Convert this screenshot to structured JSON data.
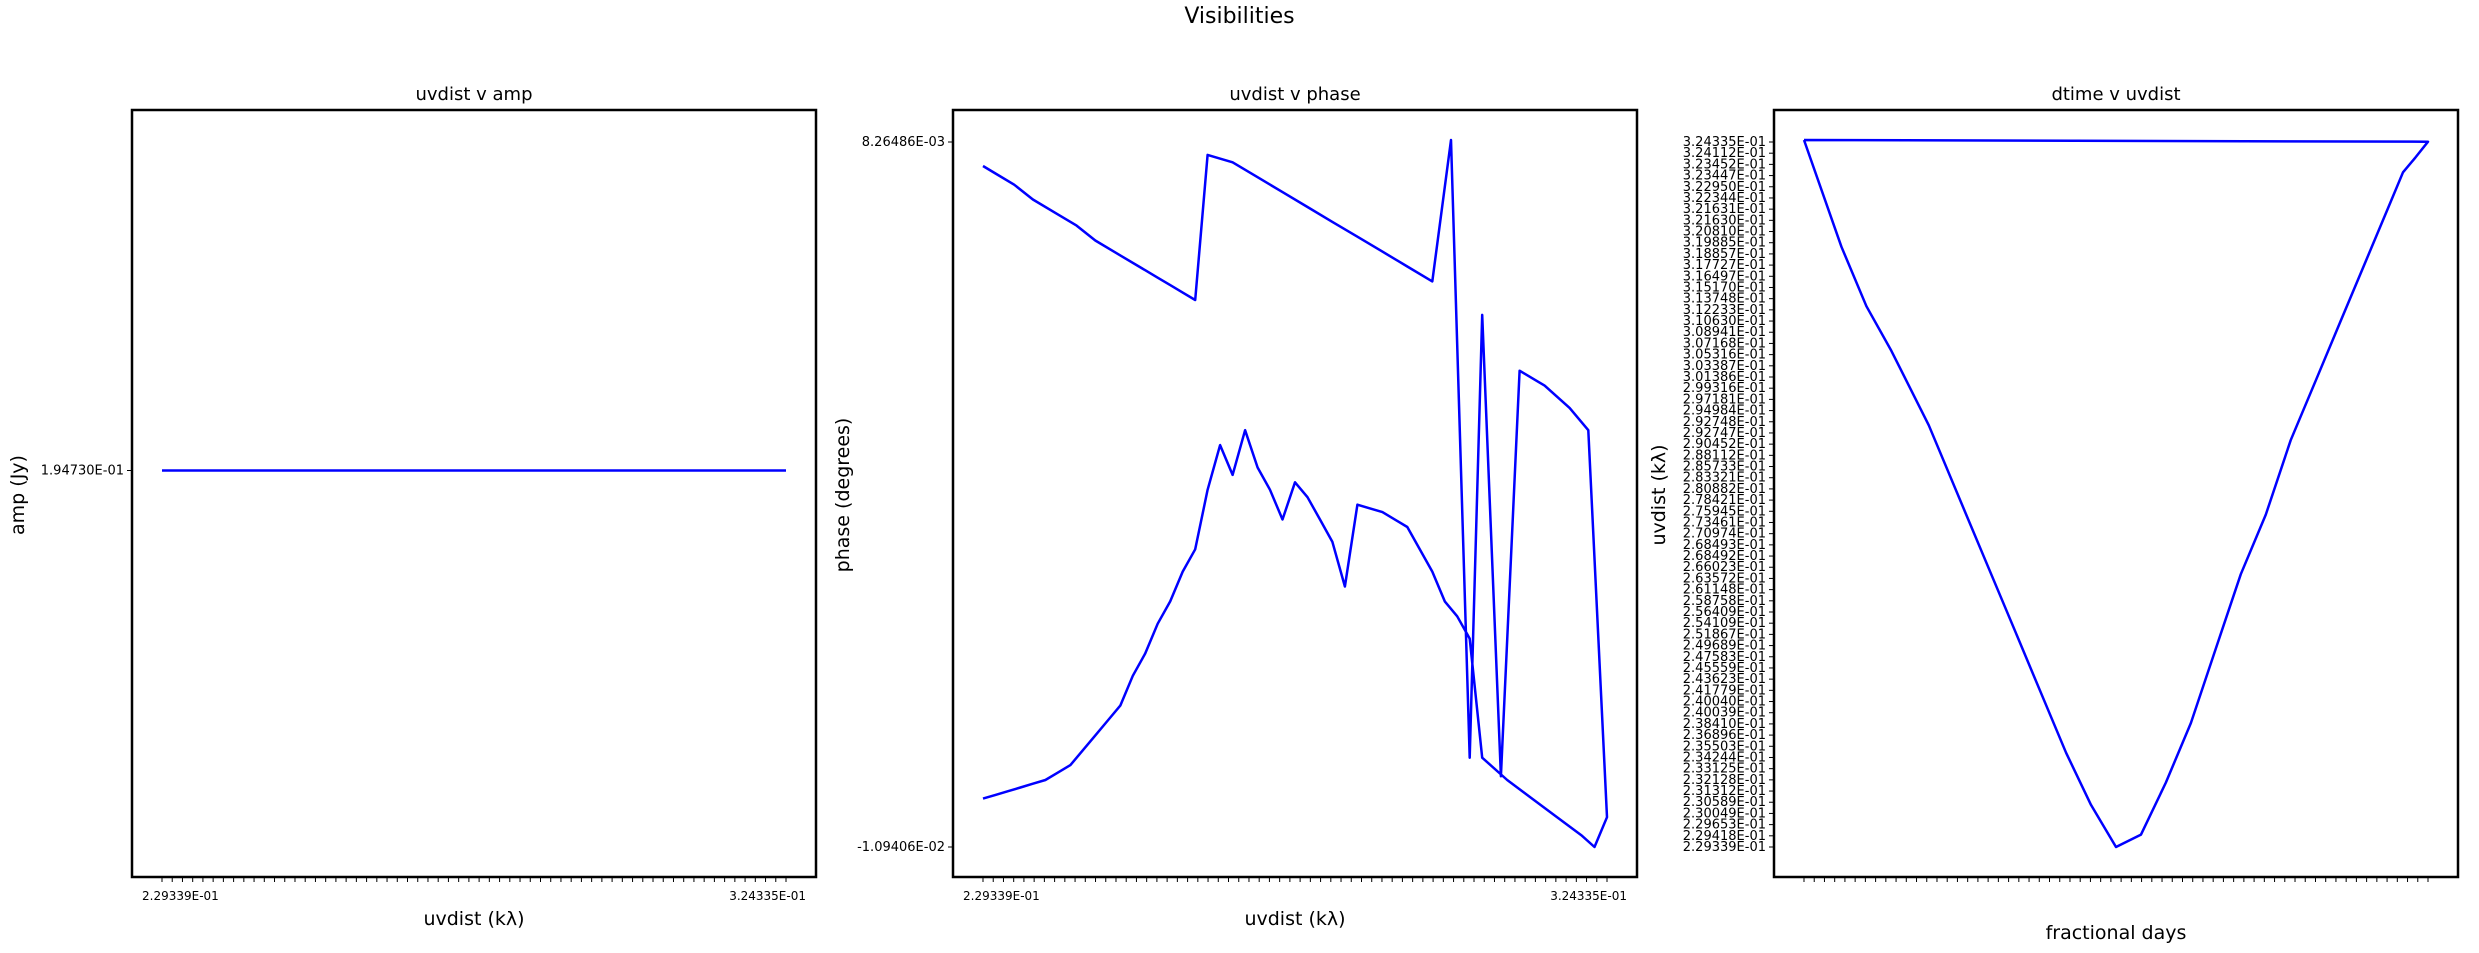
{
  "figure_title": "Visibilities",
  "colors": {
    "line": "#0000ff",
    "axes": "#000000"
  },
  "chart_data": [
    {
      "type": "line",
      "title": "uvdist v amp",
      "xlabel": "uvdist (kλ)",
      "ylabel": "amp (Jy)",
      "y_tick_labels": [
        "1.94730E-01"
      ],
      "x_ticks_note": "dense overlapping tick labels",
      "x_tick_labels": [
        "2.29339E-01",
        "3.24335E-01"
      ],
      "series": [
        {
          "x": [
            0,
            1
          ],
          "y": [
            0.19473,
            0.19473
          ]
        }
      ]
    },
    {
      "type": "line",
      "title": "uvdist v phase",
      "xlabel": "uvdist (kλ)",
      "ylabel": "phase (degrees)",
      "x_tick_labels": [
        "2.29339E-01",
        "3.24335E-01"
      ],
      "y_tick_labels": [
        "8.26486E-03",
        "-1.09406E-02"
      ],
      "series": [
        {
          "x": [
            0,
            0.02,
            0.05,
            0.08,
            0.12,
            0.15,
            0.18,
            0.22,
            0.26,
            0.28,
            0.3,
            0.32,
            0.34,
            0.36,
            0.4,
            0.44,
            0.48,
            0.52,
            0.56,
            0.6,
            0.64,
            0.68,
            0.72,
            0.75,
            0.78,
            0.8,
            0.83,
            0.86,
            0.9,
            0.94,
            0.97,
            1.0,
            0.98,
            0.96,
            0.92,
            0.88,
            0.84,
            0.8,
            0.78,
            0.76,
            0.74,
            0.72,
            0.68,
            0.64,
            0.6,
            0.58,
            0.56,
            0.54,
            0.52,
            0.5,
            0.48,
            0.46,
            0.44,
            0.42,
            0.4,
            0.38,
            0.36,
            0.34,
            0.32,
            0.3,
            0.28,
            0.26,
            0.24,
            0.22,
            0.2,
            0.18,
            0.16,
            0.14,
            0.12,
            0.1,
            0.08,
            0.06,
            0.04,
            0.02,
            0.0
          ],
          "y": [
            0.0079,
            0.0077,
            0.0074,
            0.007,
            0.0066,
            0.0063,
            0.0059,
            0.0055,
            0.0051,
            0.0049,
            0.0047,
            0.0045,
            0.0043,
            0.0082,
            0.008,
            0.0076,
            0.0072,
            0.0068,
            0.0064,
            0.006,
            0.0056,
            0.0052,
            0.0048,
            0.0086,
            -0.008,
            0.0039,
            -0.0085,
            0.0024,
            0.002,
            0.0014,
            0.0008,
            -0.0096,
            -0.0104,
            -0.0101,
            -0.0096,
            -0.0091,
            -0.0086,
            -0.008,
            -0.0048,
            -0.0042,
            -0.0038,
            -0.003,
            -0.0018,
            -0.0014,
            -0.0012,
            -0.0034,
            -0.0022,
            -0.0016,
            -0.001,
            -0.0006,
            -0.0016,
            -0.0008,
            -0.0002,
            0.0008,
            -0.0004,
            0.0004,
            -0.0008,
            -0.0024,
            -0.003,
            -0.0038,
            -0.0044,
            -0.0052,
            -0.0058,
            -0.0066,
            -0.007,
            -0.0074,
            -0.0078,
            -0.0082,
            -0.0084,
            -0.0086,
            -0.0087,
            -0.0088,
            -0.0089,
            -0.009,
            -0.0091
          ]
        }
      ]
    },
    {
      "type": "line",
      "title": "dtime v uvdist",
      "xlabel": "fractional days",
      "ylabel": "uvdist (kλ)",
      "y_tick_labels": [
        "3.24335E-01",
        "3.24112E-01",
        "3.23452E-01",
        "3.23447E-01",
        "3.22950E-01",
        "3.22344E-01",
        "3.21631E-01",
        "3.21630E-01",
        "3.20810E-01",
        "3.19885E-01",
        "3.18857E-01",
        "3.17727E-01",
        "3.16497E-01",
        "3.15170E-01",
        "3.13748E-01",
        "3.12233E-01",
        "3.10630E-01",
        "3.08941E-01",
        "3.07168E-01",
        "3.05316E-01",
        "3.03387E-01",
        "3.01386E-01",
        "2.99316E-01",
        "2.97181E-01",
        "2.94984E-01",
        "2.92748E-01",
        "2.92747E-01",
        "2.90452E-01",
        "2.88112E-01",
        "2.85733E-01",
        "2.83321E-01",
        "2.80882E-01",
        "2.78421E-01",
        "2.75945E-01",
        "2.73461E-01",
        "2.70974E-01",
        "2.68493E-01",
        "2.68492E-01",
        "2.66023E-01",
        "2.63572E-01",
        "2.61148E-01",
        "2.58758E-01",
        "2.56409E-01",
        "2.54109E-01",
        "2.51867E-01",
        "2.49689E-01",
        "2.47583E-01",
        "2.45559E-01",
        "2.43623E-01",
        "2.41779E-01",
        "2.40040E-01",
        "2.40039E-01",
        "2.38410E-01",
        "2.36896E-01",
        "2.35503E-01",
        "2.34244E-01",
        "2.33125E-01",
        "2.32128E-01",
        "2.31312E-01",
        "2.30589E-01",
        "2.30049E-01",
        "2.29653E-01",
        "2.29418E-01",
        "2.29339E-01"
      ],
      "series": [
        {
          "x": [
            0,
            0.06,
            0.1,
            0.14,
            0.2,
            0.26,
            0.3,
            0.34,
            0.38,
            0.42,
            0.46,
            0.5,
            0.54,
            0.58,
            0.62,
            0.66,
            0.7,
            0.74,
            0.78,
            0.82,
            0.86,
            0.9,
            0.94,
            0.96,
            0.98,
            1.0,
            0.0
          ],
          "y": [
            0.324335,
            0.31,
            0.302,
            0.296,
            0.286,
            0.274,
            0.266,
            0.258,
            0.25,
            0.242,
            0.235,
            0.229339,
            0.231,
            0.238,
            0.246,
            0.256,
            0.266,
            0.274,
            0.284,
            0.292,
            0.3,
            0.308,
            0.316,
            0.32,
            0.322,
            0.324112,
            0.324335
          ]
        }
      ]
    }
  ]
}
